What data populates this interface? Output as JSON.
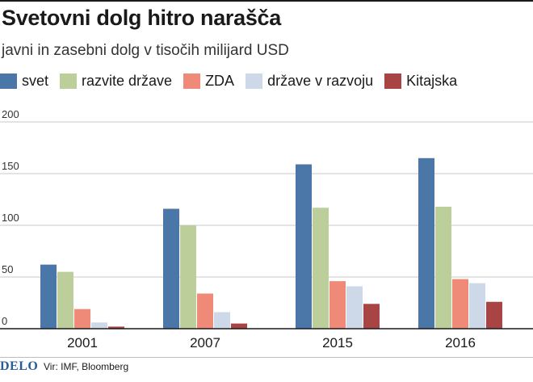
{
  "header": {
    "title": "Svetovni dolg hitro narašča",
    "subtitle": "javni in zasebni dolg v tisočih milijard USD"
  },
  "footer": {
    "brand": "DELO",
    "source": "Vir: IMF, Bloomberg"
  },
  "chart_data": {
    "type": "bar",
    "title": "Svetovni dolg hitro narašča",
    "subtitle": "javni in zasebni dolg v tisočih milijard USD",
    "xlabel": "",
    "ylabel": "",
    "categories": [
      "2001",
      "2007",
      "2015",
      "2016"
    ],
    "ylim": [
      0,
      200
    ],
    "yticks": [
      0,
      50,
      100,
      150,
      200
    ],
    "grid": true,
    "legend_position": "top",
    "series": [
      {
        "name": "svet",
        "color": "#4a77a8",
        "values": [
          62,
          116,
          159,
          165
        ]
      },
      {
        "name": "razvite države",
        "color": "#bccf9b",
        "values": [
          55,
          100,
          117,
          118
        ]
      },
      {
        "name": "ZDA",
        "color": "#f08a78",
        "values": [
          19,
          34,
          46,
          48
        ]
      },
      {
        "name": "države v razvoju",
        "color": "#cdd8e8",
        "values": [
          6,
          16,
          41,
          44
        ]
      },
      {
        "name": "Kitajska",
        "color": "#a84444",
        "values": [
          2,
          5,
          24,
          26
        ]
      }
    ]
  }
}
